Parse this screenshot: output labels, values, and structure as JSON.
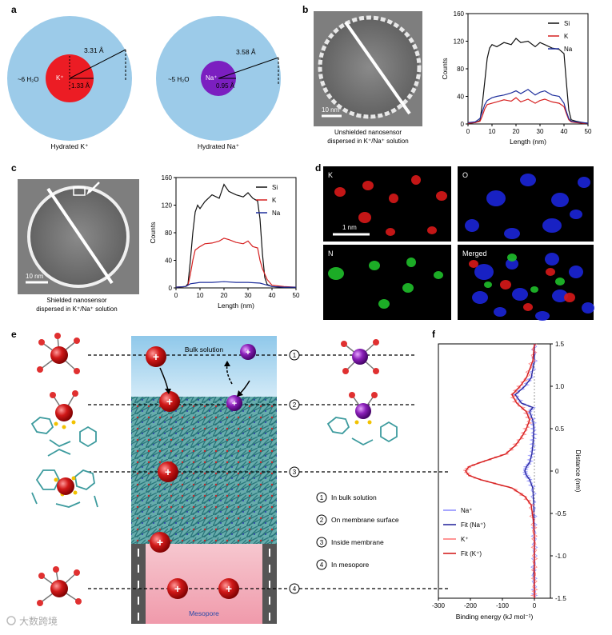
{
  "panels": {
    "a": {
      "letter": "a",
      "k": {
        "outer_radius": "3.31 Å",
        "inner_radius": "1.33 Å",
        "water": "~6 H₂O",
        "ion": "K⁺",
        "caption": "Hydrated K⁺"
      },
      "na": {
        "outer_radius": "3.58 Å",
        "inner_radius": "0.95 Å",
        "water": "~5 H₂O",
        "ion": "Na⁺",
        "caption": "Hydrated Na⁺"
      }
    },
    "b": {
      "letter": "b",
      "scale": "10 nm",
      "caption1": "Unshielded nanosensor",
      "caption2": "dispersed in K⁺/Na⁺ solution"
    },
    "c": {
      "letter": "c",
      "scale": "10 nm",
      "caption1": "Shielded nanosensor",
      "caption2": "dispersed in K⁺/Na⁺ solution"
    },
    "d": {
      "letter": "d",
      "tiles": [
        "K",
        "O",
        "N",
        "Merged"
      ],
      "scale": "1 nm"
    },
    "e": {
      "letter": "e",
      "bulk": "Bulk solution",
      "mesopore": "Mesopore",
      "legend": [
        {
          "num": "1",
          "text": "In bulk solution"
        },
        {
          "num": "2",
          "text": "On membrane surface"
        },
        {
          "num": "3",
          "text": "Inside membrane"
        },
        {
          "num": "4",
          "text": "In mesopore"
        }
      ]
    },
    "f": {
      "letter": "f"
    }
  },
  "watermark": "大数跨境",
  "chart_data": [
    {
      "id": "b-profile",
      "type": "line",
      "xlabel": "Length (nm)",
      "ylabel": "Counts",
      "xlim": [
        0,
        50
      ],
      "ylim": [
        0,
        160
      ],
      "xticks": [
        0,
        10,
        20,
        30,
        40,
        50
      ],
      "yticks": [
        0,
        40,
        80,
        120,
        160
      ],
      "legend_position": "top-right",
      "series": [
        {
          "name": "Si",
          "color": "#111111",
          "x": [
            0,
            3,
            5,
            6,
            7,
            8,
            9,
            10,
            12,
            15,
            18,
            20,
            22,
            25,
            28,
            30,
            32,
            35,
            38,
            40,
            41,
            42,
            43,
            45,
            48,
            50
          ],
          "values": [
            1,
            2,
            5,
            30,
            62,
            95,
            110,
            115,
            112,
            118,
            115,
            124,
            118,
            120,
            112,
            118,
            115,
            110,
            108,
            102,
            60,
            20,
            6,
            4,
            2,
            1
          ]
        },
        {
          "name": "K",
          "color": "#d62020",
          "x": [
            0,
            3,
            5,
            6,
            7,
            8,
            10,
            12,
            15,
            18,
            20,
            22,
            25,
            28,
            30,
            32,
            35,
            38,
            40,
            41,
            42,
            43,
            45,
            48,
            50
          ],
          "values": [
            1,
            2,
            4,
            12,
            22,
            28,
            30,
            32,
            35,
            33,
            38,
            32,
            36,
            30,
            34,
            36,
            32,
            30,
            25,
            15,
            6,
            3,
            2,
            1,
            1
          ]
        },
        {
          "name": "Na",
          "color": "#1f2f9c",
          "x": [
            0,
            3,
            5,
            6,
            7,
            8,
            10,
            12,
            15,
            18,
            20,
            22,
            25,
            28,
            30,
            32,
            35,
            38,
            40,
            41,
            42,
            43,
            45,
            48,
            50
          ],
          "values": [
            2,
            3,
            8,
            18,
            28,
            34,
            38,
            40,
            42,
            45,
            48,
            44,
            50,
            42,
            46,
            48,
            42,
            40,
            30,
            18,
            8,
            4,
            3,
            2,
            1
          ]
        }
      ]
    },
    {
      "id": "c-profile",
      "type": "line",
      "xlabel": "Length (nm)",
      "ylabel": "Counts",
      "xlim": [
        0,
        50
      ],
      "ylim": [
        0,
        160
      ],
      "xticks": [
        0,
        10,
        20,
        30,
        40,
        50
      ],
      "yticks": [
        0,
        40,
        80,
        120,
        160
      ],
      "legend_position": "top-right",
      "series": [
        {
          "name": "Si",
          "color": "#111111",
          "x": [
            0,
            4,
            5,
            6,
            7,
            8,
            9,
            10,
            12,
            15,
            18,
            20,
            22,
            25,
            28,
            30,
            32,
            34,
            35,
            36,
            37,
            38,
            40,
            45,
            50
          ],
          "values": [
            1,
            2,
            6,
            40,
            80,
            110,
            120,
            115,
            125,
            135,
            130,
            150,
            140,
            135,
            132,
            138,
            130,
            126,
            100,
            50,
            15,
            5,
            2,
            1,
            1
          ]
        },
        {
          "name": "K",
          "color": "#d62020",
          "x": [
            0,
            4,
            5,
            6,
            7,
            8,
            10,
            12,
            15,
            18,
            20,
            22,
            25,
            28,
            30,
            32,
            34,
            35,
            36,
            37,
            38,
            40,
            45,
            50
          ],
          "values": [
            1,
            2,
            4,
            20,
            40,
            55,
            60,
            64,
            65,
            68,
            72,
            70,
            66,
            64,
            68,
            60,
            58,
            40,
            28,
            20,
            12,
            4,
            2,
            1
          ]
        },
        {
          "name": "Na",
          "color": "#1f2f9c",
          "x": [
            0,
            4,
            5,
            6,
            8,
            10,
            15,
            20,
            25,
            30,
            35,
            37,
            40,
            45,
            50
          ],
          "values": [
            1,
            2,
            4,
            6,
            7,
            8,
            8,
            9,
            8,
            8,
            7,
            5,
            2,
            1,
            1
          ]
        }
      ]
    },
    {
      "id": "f-energy",
      "type": "line",
      "orientation": "horizontal",
      "xlabel": "Binding energy (kJ mol⁻¹)",
      "ylabel": "Distance (nm)",
      "xlim": [
        -300,
        50
      ],
      "ylim": [
        -1.5,
        1.5
      ],
      "xticks": [
        -300,
        -200,
        -100,
        0
      ],
      "yticks": [
        -1.5,
        -1.0,
        -0.5,
        0,
        0.5,
        1.0,
        1.5
      ],
      "legend_position": "bottom-left",
      "legend": [
        "Na⁺",
        "Fit (Na⁺)",
        "K⁺",
        "Fit (K⁺)"
      ],
      "series": [
        {
          "name": "Fit (Na⁺)",
          "color": "#2b2b9e",
          "y": [
            1.5,
            1.3,
            1.1,
            1.0,
            0.9,
            0.8,
            0.75,
            0.7,
            0.6,
            0.5,
            0.4,
            0.3,
            0.2,
            0.1,
            0.05,
            0,
            -0.05,
            -0.1,
            -0.2,
            -0.4,
            -0.6,
            -0.8,
            -1.0,
            -1.2,
            -1.4,
            -1.5
          ],
          "values": [
            0,
            0,
            -10,
            -30,
            -60,
            -40,
            -5,
            -15,
            -5,
            -2,
            -3,
            -5,
            -8,
            -15,
            -25,
            -30,
            -25,
            -15,
            -5,
            -2,
            -1,
            0,
            0,
            -2,
            0,
            0
          ]
        },
        {
          "name": "Fit (K⁺)",
          "color": "#d42020",
          "y": [
            1.5,
            1.3,
            1.1,
            1.0,
            0.9,
            0.8,
            0.7,
            0.6,
            0.5,
            0.4,
            0.3,
            0.2,
            0.15,
            0.1,
            0.05,
            0,
            -0.05,
            -0.1,
            -0.15,
            -0.2,
            -0.3,
            -0.4,
            -0.6,
            -0.8,
            -1.0,
            -1.2,
            -1.4,
            -1.5
          ],
          "values": [
            0,
            -5,
            -25,
            -45,
            -70,
            -55,
            -25,
            -15,
            -25,
            -40,
            -60,
            -90,
            -130,
            -170,
            -205,
            -215,
            -205,
            -170,
            -120,
            -70,
            -30,
            -10,
            -3,
            0,
            0,
            0,
            0,
            0
          ]
        }
      ]
    }
  ]
}
